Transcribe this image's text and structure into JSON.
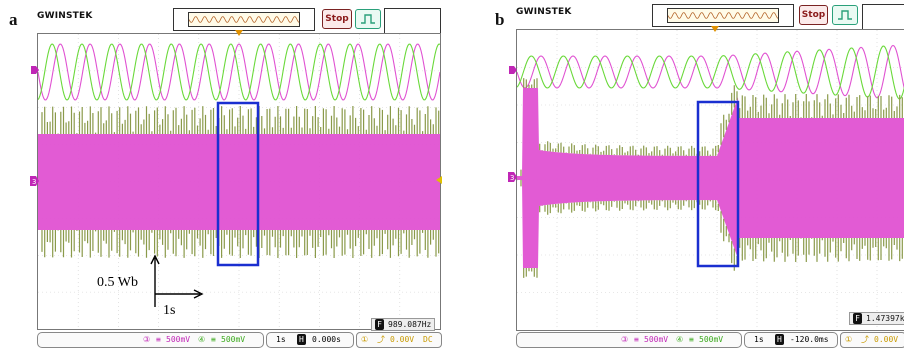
{
  "panels": [
    {
      "letter": "a",
      "brand": "GWINSTEK",
      "stop_label": "Stop",
      "ch3_label": "3",
      "ch4_label": "4",
      "ch3_scale": "500mV",
      "ch4_scale": "500mV",
      "timebase": "1s",
      "position": "0.000s",
      "trigger_level": "0.00V",
      "coupling": "DC",
      "frequency": "989.087Hz",
      "scale_y": "0.5 Wb",
      "scale_x": "1s"
    },
    {
      "letter": "b",
      "brand": "GWINSTEK",
      "stop_label": "Stop",
      "ch3_label": "3",
      "ch4_label": "4",
      "ch3_scale": "500mV",
      "ch4_scale": "500mV",
      "timebase": "1s",
      "position": "-120.0ms",
      "trigger_level": "0.00V",
      "frequency": "1.47397kHz"
    }
  ],
  "colors": {
    "ch3_magenta": "#e052d2",
    "ch4_green": "#6ad93a",
    "highlight_box": "#1a2fd0",
    "envelope_band": "#8a9a4a"
  },
  "icons": {
    "trigger_edge": "rising-edge-icon",
    "freq_badge": "F",
    "position_badge": "H",
    "ch_marker": "channel-marker-icon"
  }
}
